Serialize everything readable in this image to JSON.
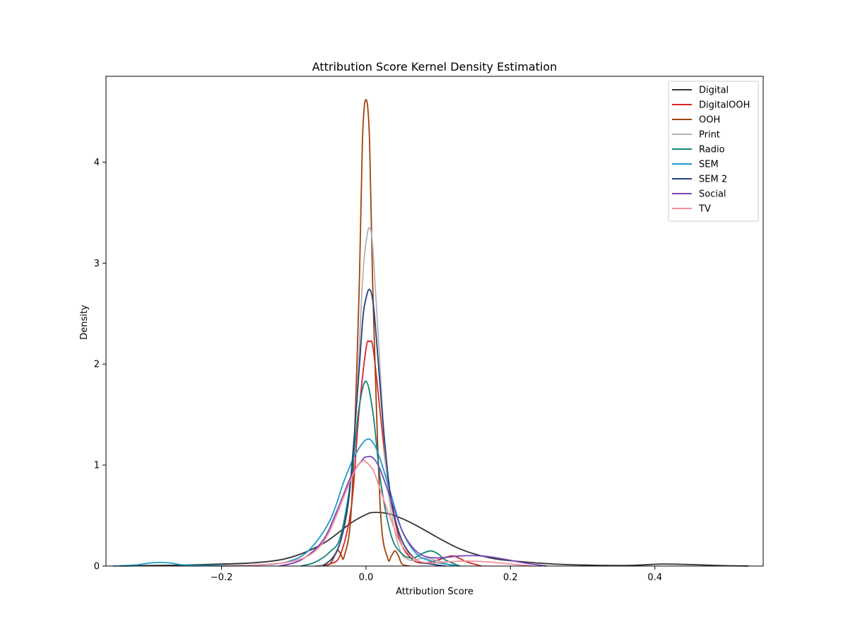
{
  "chart_data": {
    "type": "line",
    "title": "Attribution Score Kernel Density Estimation",
    "xlabel": "Attribution Score",
    "ylabel": "Density",
    "xlim": [
      -0.36,
      0.55
    ],
    "ylim": [
      0,
      4.85
    ],
    "xticks": [
      -0.2,
      0.0,
      0.2,
      0.4
    ],
    "xtick_labels": [
      "−0.2",
      "0.0",
      "0.2",
      "0.4"
    ],
    "yticks": [
      0,
      1,
      2,
      3,
      4
    ],
    "ytick_labels": [
      "0",
      "1",
      "2",
      "3",
      "4"
    ],
    "grid": false,
    "legend_position": "top-right",
    "series": [
      {
        "name": "Digital",
        "color": "#333333",
        "x": [
          -0.34,
          -0.3,
          -0.25,
          -0.2,
          -0.16,
          -0.12,
          -0.09,
          -0.06,
          -0.04,
          -0.02,
          0.0,
          0.01,
          0.03,
          0.05,
          0.07,
          0.09,
          0.11,
          0.13,
          0.15,
          0.18,
          0.22,
          0.26,
          0.3,
          0.35,
          0.38,
          0.41,
          0.45,
          0.49,
          0.53
        ],
        "y": [
          0.0,
          0.005,
          0.01,
          0.02,
          0.03,
          0.06,
          0.12,
          0.22,
          0.32,
          0.43,
          0.51,
          0.53,
          0.52,
          0.47,
          0.4,
          0.32,
          0.24,
          0.17,
          0.12,
          0.07,
          0.04,
          0.02,
          0.01,
          0.005,
          0.01,
          0.02,
          0.015,
          0.005,
          0.0
        ]
      },
      {
        "name": "DigitalOOH",
        "color": "#d62728",
        "x": [
          -0.07,
          -0.05,
          -0.035,
          -0.02,
          -0.01,
          0.0,
          0.005,
          0.01,
          0.02,
          0.03,
          0.04,
          0.05,
          0.065,
          0.08,
          0.1,
          0.12,
          0.14,
          0.16
        ],
        "y": [
          0.0,
          0.02,
          0.12,
          0.6,
          1.5,
          2.15,
          2.22,
          2.15,
          1.5,
          0.85,
          0.45,
          0.2,
          0.06,
          0.03,
          0.06,
          0.1,
          0.04,
          0.0
        ]
      },
      {
        "name": "OOH",
        "color": "#a0400b",
        "x": [
          -0.065,
          -0.05,
          -0.04,
          -0.035,
          -0.03,
          -0.02,
          -0.01,
          -0.005,
          0.0,
          0.005,
          0.01,
          0.02,
          0.03,
          0.035,
          0.04,
          0.045,
          0.05,
          0.06
        ],
        "y": [
          0.0,
          0.02,
          0.15,
          0.12,
          0.1,
          0.6,
          2.6,
          4.2,
          4.62,
          4.2,
          2.6,
          0.55,
          0.08,
          0.1,
          0.15,
          0.1,
          0.02,
          0.0
        ]
      },
      {
        "name": "Print",
        "color": "#b3b3b3",
        "x": [
          -0.07,
          -0.05,
          -0.03,
          -0.015,
          -0.005,
          0.0,
          0.005,
          0.01,
          0.02,
          0.03,
          0.045,
          0.06,
          0.08,
          0.1,
          0.12
        ],
        "y": [
          0.0,
          0.05,
          0.4,
          1.4,
          2.8,
          3.2,
          3.35,
          3.1,
          1.9,
          0.8,
          0.2,
          0.06,
          0.08,
          0.05,
          0.0
        ]
      },
      {
        "name": "Radio",
        "color": "#138477",
        "x": [
          -0.09,
          -0.07,
          -0.05,
          -0.035,
          -0.02,
          -0.01,
          0.0,
          0.01,
          0.02,
          0.035,
          0.05,
          0.065,
          0.08,
          0.09,
          0.1,
          0.11,
          0.13
        ],
        "y": [
          0.0,
          0.04,
          0.14,
          0.3,
          0.9,
          1.55,
          1.83,
          1.5,
          0.85,
          0.3,
          0.12,
          0.08,
          0.13,
          0.15,
          0.12,
          0.06,
          0.0
        ]
      },
      {
        "name": "SEM",
        "color": "#1f9ac9",
        "x": [
          -0.35,
          -0.32,
          -0.3,
          -0.285,
          -0.27,
          -0.25,
          -0.2,
          -0.15,
          -0.11,
          -0.08,
          -0.05,
          -0.03,
          -0.015,
          0.0,
          0.01,
          0.02,
          0.035,
          0.05,
          0.07,
          0.09,
          0.11,
          0.13
        ],
        "y": [
          0.0,
          0.01,
          0.03,
          0.035,
          0.03,
          0.01,
          0.005,
          0.01,
          0.04,
          0.15,
          0.45,
          0.85,
          1.1,
          1.25,
          1.22,
          1.05,
          0.7,
          0.35,
          0.12,
          0.05,
          0.02,
          0.0
        ]
      },
      {
        "name": "SEM 2",
        "color": "#233f7f",
        "x": [
          -0.06,
          -0.04,
          -0.025,
          -0.015,
          -0.005,
          0.0,
          0.005,
          0.01,
          0.015,
          0.025,
          0.035,
          0.05,
          0.07,
          0.09,
          0.11
        ],
        "y": [
          0.0,
          0.15,
          0.6,
          1.4,
          2.4,
          2.65,
          2.74,
          2.6,
          2.2,
          1.3,
          0.65,
          0.25,
          0.06,
          0.02,
          0.0
        ]
      },
      {
        "name": "Social",
        "color": "#7b44b8",
        "x": [
          -0.12,
          -0.09,
          -0.06,
          -0.04,
          -0.02,
          -0.005,
          0.0,
          0.01,
          0.02,
          0.035,
          0.05,
          0.065,
          0.08,
          0.1,
          0.13,
          0.16,
          0.19,
          0.22,
          0.25
        ],
        "y": [
          0.0,
          0.06,
          0.25,
          0.55,
          0.9,
          1.05,
          1.08,
          1.07,
          0.95,
          0.65,
          0.35,
          0.18,
          0.1,
          0.08,
          0.1,
          0.1,
          0.07,
          0.03,
          0.0
        ]
      },
      {
        "name": "TV",
        "color": "#f4909a",
        "x": [
          -0.2,
          -0.15,
          -0.1,
          -0.07,
          -0.05,
          -0.03,
          -0.015,
          -0.005,
          0.0,
          0.01,
          0.02,
          0.035,
          0.05,
          0.07,
          0.09,
          0.11,
          0.14,
          0.17,
          0.2,
          0.23
        ],
        "y": [
          0.0,
          0.01,
          0.05,
          0.15,
          0.35,
          0.7,
          0.95,
          1.04,
          1.03,
          0.95,
          0.75,
          0.45,
          0.2,
          0.06,
          0.03,
          0.04,
          0.05,
          0.04,
          0.02,
          0.0
        ]
      }
    ]
  }
}
